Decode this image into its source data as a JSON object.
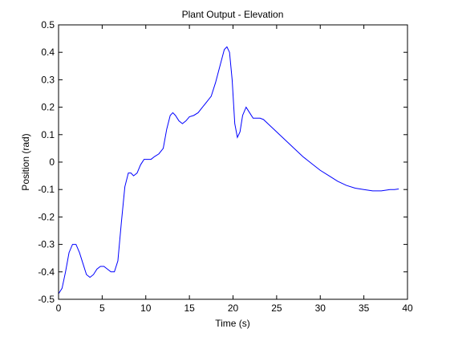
{
  "chart_data": {
    "type": "line",
    "title": "Plant Output - Elevation",
    "xlabel": "Time (s)",
    "ylabel": "Position (rad)",
    "xlim": [
      0,
      40
    ],
    "ylim": [
      -0.5,
      0.5
    ],
    "xticks": [
      0,
      5,
      10,
      15,
      20,
      25,
      30,
      35,
      40
    ],
    "yticks": [
      -0.5,
      -0.4,
      -0.3,
      -0.2,
      -0.1,
      0,
      0.1,
      0.2,
      0.3,
      0.4,
      0.5
    ],
    "xtick_labels": [
      "0",
      "5",
      "10",
      "15",
      "20",
      "25",
      "30",
      "35",
      "40"
    ],
    "ytick_labels": [
      "-0.5",
      "-0.4",
      "-0.3",
      "-0.2",
      "-0.1",
      "0",
      "0.1",
      "0.2",
      "0.3",
      "0.4",
      "0.5"
    ],
    "grid": false,
    "line_color": "#0000ff",
    "series": [
      {
        "x": [
          0,
          0.4,
          0.8,
          1.2,
          1.6,
          2.0,
          2.4,
          2.8,
          3.2,
          3.6,
          4.0,
          4.4,
          4.8,
          5.2,
          5.6,
          6.0,
          6.4,
          6.8,
          7.2,
          7.6,
          8.0,
          8.3,
          8.6,
          9.0,
          9.4,
          9.8,
          10.2,
          10.6,
          11.0,
          11.5,
          12.0,
          12.4,
          12.8,
          13.1,
          13.4,
          13.8,
          14.2,
          14.6,
          15.0,
          15.5,
          16.0,
          16.5,
          17.0,
          17.5,
          18.0,
          18.5,
          19.0,
          19.3,
          19.6,
          19.9,
          20.2,
          20.5,
          20.8,
          21.1,
          21.5,
          21.9,
          22.3,
          22.7,
          23.1,
          23.5,
          24.0,
          25.0,
          26.0,
          27.0,
          28.0,
          29.0,
          30.0,
          31.0,
          32.0,
          33.0,
          34.0,
          35.0,
          36.0,
          37.0,
          38.0,
          38.5,
          39.0
        ],
        "y": [
          -0.48,
          -0.46,
          -0.4,
          -0.33,
          -0.3,
          -0.3,
          -0.33,
          -0.37,
          -0.41,
          -0.42,
          -0.41,
          -0.39,
          -0.38,
          -0.38,
          -0.39,
          -0.4,
          -0.4,
          -0.36,
          -0.22,
          -0.09,
          -0.04,
          -0.04,
          -0.05,
          -0.04,
          -0.01,
          0.01,
          0.01,
          0.01,
          0.02,
          0.03,
          0.05,
          0.12,
          0.17,
          0.18,
          0.17,
          0.15,
          0.14,
          0.15,
          0.165,
          0.17,
          0.18,
          0.2,
          0.22,
          0.24,
          0.29,
          0.35,
          0.41,
          0.42,
          0.4,
          0.3,
          0.14,
          0.09,
          0.11,
          0.17,
          0.2,
          0.18,
          0.16,
          0.16,
          0.16,
          0.155,
          0.14,
          0.11,
          0.08,
          0.05,
          0.02,
          -0.005,
          -0.03,
          -0.05,
          -0.07,
          -0.085,
          -0.095,
          -0.1,
          -0.105,
          -0.105,
          -0.1,
          -0.1,
          -0.098
        ]
      }
    ]
  }
}
